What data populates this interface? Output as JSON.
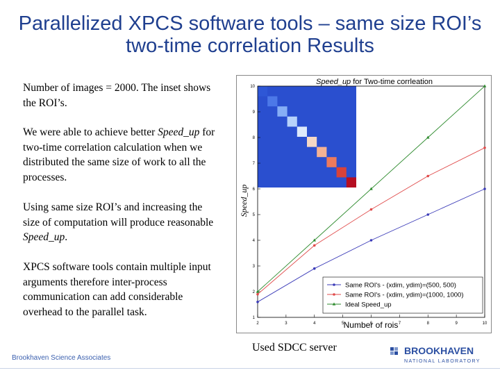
{
  "slide": {
    "title": "Parallelized XPCS software tools – same size ROI’s two-time correlation Results",
    "paragraphs": {
      "p1": "Number of images = 2000. The inset shows the ROI’s.",
      "p2_pre": "We were able to achieve better ",
      "p2_em": "Speed_up",
      "p2_post": " for two-time correlation calculation when we distributed the same size of work to all the processes.",
      "p3_pre": "Using same size ROI’s and increasing the size of computation will produce reasonable ",
      "p3_em": "Speed_up",
      "p3_post": ".",
      "p4": "XPCS software tools contain multiple input arguments therefore inter-process communication can add considerable overhead to the parallel task."
    },
    "caption": "Used SDCC server",
    "footer_left": "Brookhaven Science Associates",
    "logo": {
      "name": "BROOKHAVEN",
      "sub": "NATIONAL LABORATORY"
    }
  },
  "chart_data": {
    "type": "line",
    "title_em": "Speed_up",
    "title_rest": " for Two-time corrleation",
    "xlabel": "Number of rois",
    "ylabel": "Speed_up",
    "xlim": [
      2,
      10
    ],
    "ylim": [
      1,
      10
    ],
    "xticks": [
      "2",
      "3",
      "4",
      "5",
      "6",
      "7",
      "8",
      "9",
      "10"
    ],
    "yticks": [
      "1",
      "2",
      "3",
      "4",
      "5",
      "6",
      "7",
      "8",
      "9",
      "10"
    ],
    "x": [
      2,
      4,
      6,
      8,
      10
    ],
    "series": [
      {
        "name": "Same ROI's - (xdim, ydim)=(500, 500)",
        "color": "#3b3bb8",
        "marker": "dot",
        "values": [
          1.6,
          2.9,
          4.0,
          5.0,
          6.0
        ]
      },
      {
        "name": "Same ROI's - (xdim, ydim)=(1000, 1000)",
        "color": "#e04b4b",
        "marker": "dot",
        "values": [
          1.9,
          3.8,
          5.2,
          6.5,
          7.6
        ]
      },
      {
        "name": "Ideal Speed_up",
        "color": "#2e8b2e",
        "marker": "triangle",
        "values": [
          2,
          4,
          6,
          8,
          10
        ]
      }
    ],
    "legend_position": "bottom-right",
    "inset": {
      "description_colors": [
        "#2e57d6",
        "#4c78e8",
        "#86aef6",
        "#b7d2fb",
        "#dde9fb",
        "#f5d8c5",
        "#f4b294",
        "#ec7a5d",
        "#d7423a",
        "#b50e22"
      ]
    }
  }
}
